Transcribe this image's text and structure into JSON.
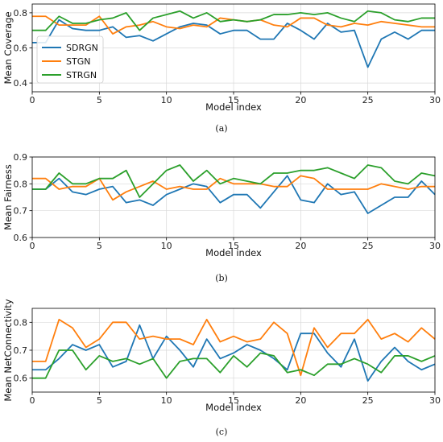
{
  "chart_data": [
    {
      "type": "line",
      "caption": "(a)",
      "xlabel": "Model index",
      "ylabel": "Mean Coverage",
      "xlim": [
        0,
        30
      ],
      "ylim": [
        0.35,
        0.85
      ],
      "yticks": [
        0.4,
        0.6,
        0.8
      ],
      "xticks": [
        0,
        5,
        10,
        15,
        20,
        25,
        30
      ],
      "grid": true,
      "legend": "left",
      "series": [
        {
          "name": "SDRGN",
          "color": "#1f77b4",
          "x": [
            0,
            1,
            2,
            3,
            4,
            5,
            6,
            7,
            8,
            9,
            10,
            11,
            12,
            13,
            14,
            15,
            16,
            17,
            18,
            19,
            20,
            21,
            22,
            23,
            24,
            25,
            26,
            27,
            28,
            29,
            30
          ],
          "values": [
            0.63,
            0.63,
            0.76,
            0.71,
            0.7,
            0.7,
            0.72,
            0.66,
            0.67,
            0.64,
            0.68,
            0.72,
            0.74,
            0.73,
            0.68,
            0.7,
            0.7,
            0.65,
            0.65,
            0.74,
            0.7,
            0.65,
            0.74,
            0.69,
            0.7,
            0.49,
            0.65,
            0.69,
            0.65,
            0.7,
            0.7
          ]
        },
        {
          "name": "STGN",
          "color": "#ff7f0e",
          "x": [
            0,
            1,
            2,
            3,
            4,
            5,
            6,
            7,
            8,
            9,
            10,
            11,
            12,
            13,
            14,
            15,
            16,
            17,
            18,
            19,
            20,
            21,
            22,
            23,
            24,
            25,
            26,
            27,
            28,
            29,
            30
          ],
          "values": [
            0.78,
            0.78,
            0.73,
            0.73,
            0.73,
            0.78,
            0.68,
            0.72,
            0.73,
            0.75,
            0.72,
            0.71,
            0.73,
            0.72,
            0.77,
            0.76,
            0.75,
            0.76,
            0.73,
            0.72,
            0.77,
            0.77,
            0.73,
            0.72,
            0.74,
            0.73,
            0.75,
            0.74,
            0.73,
            0.72,
            0.72
          ]
        },
        {
          "name": "STRGN",
          "color": "#2ca02c",
          "x": [
            0,
            1,
            2,
            3,
            4,
            5,
            6,
            7,
            8,
            9,
            10,
            11,
            12,
            13,
            14,
            15,
            16,
            17,
            18,
            19,
            20,
            21,
            22,
            23,
            24,
            25,
            26,
            27,
            28,
            29,
            30
          ],
          "values": [
            0.7,
            0.7,
            0.78,
            0.74,
            0.74,
            0.76,
            0.77,
            0.8,
            0.7,
            0.77,
            0.79,
            0.81,
            0.77,
            0.8,
            0.75,
            0.76,
            0.75,
            0.76,
            0.79,
            0.79,
            0.8,
            0.79,
            0.8,
            0.77,
            0.75,
            0.81,
            0.8,
            0.76,
            0.75,
            0.77,
            0.77
          ]
        }
      ]
    },
    {
      "type": "line",
      "caption": "(b)",
      "xlabel": "Model index",
      "ylabel": "Mean Fairness",
      "xlim": [
        0,
        30
      ],
      "ylim": [
        0.6,
        0.9
      ],
      "yticks": [
        0.6,
        0.7,
        0.8,
        0.9
      ],
      "xticks": [
        0,
        5,
        10,
        15,
        20,
        25,
        30
      ],
      "grid": true,
      "series": [
        {
          "name": "SDRGN",
          "color": "#1f77b4",
          "x": [
            0,
            1,
            2,
            3,
            4,
            5,
            6,
            7,
            8,
            9,
            10,
            11,
            12,
            13,
            14,
            15,
            16,
            17,
            18,
            19,
            20,
            21,
            22,
            23,
            24,
            25,
            26,
            27,
            28,
            29,
            30
          ],
          "values": [
            0.78,
            0.78,
            0.82,
            0.77,
            0.76,
            0.78,
            0.79,
            0.73,
            0.74,
            0.72,
            0.76,
            0.78,
            0.8,
            0.79,
            0.73,
            0.76,
            0.76,
            0.71,
            0.77,
            0.83,
            0.74,
            0.73,
            0.8,
            0.76,
            0.77,
            0.69,
            0.72,
            0.75,
            0.75,
            0.81,
            0.76
          ]
        },
        {
          "name": "STGN",
          "color": "#ff7f0e",
          "x": [
            0,
            1,
            2,
            3,
            4,
            5,
            6,
            7,
            8,
            9,
            10,
            11,
            12,
            13,
            14,
            15,
            16,
            17,
            18,
            19,
            20,
            21,
            22,
            23,
            24,
            25,
            26,
            27,
            28,
            29,
            30
          ],
          "values": [
            0.82,
            0.82,
            0.78,
            0.79,
            0.79,
            0.82,
            0.74,
            0.77,
            0.79,
            0.81,
            0.78,
            0.79,
            0.78,
            0.78,
            0.82,
            0.8,
            0.8,
            0.8,
            0.79,
            0.79,
            0.83,
            0.82,
            0.78,
            0.78,
            0.78,
            0.78,
            0.8,
            0.79,
            0.78,
            0.79,
            0.79
          ]
        },
        {
          "name": "STRGN",
          "color": "#2ca02c",
          "x": [
            0,
            1,
            2,
            3,
            4,
            5,
            6,
            7,
            8,
            9,
            10,
            11,
            12,
            13,
            14,
            15,
            16,
            17,
            18,
            19,
            20,
            21,
            22,
            23,
            24,
            25,
            26,
            27,
            28,
            29,
            30
          ],
          "values": [
            0.78,
            0.78,
            0.84,
            0.8,
            0.8,
            0.82,
            0.82,
            0.85,
            0.75,
            0.8,
            0.85,
            0.87,
            0.81,
            0.85,
            0.8,
            0.82,
            0.81,
            0.8,
            0.84,
            0.84,
            0.85,
            0.85,
            0.86,
            0.84,
            0.82,
            0.87,
            0.86,
            0.81,
            0.8,
            0.84,
            0.83
          ]
        }
      ]
    },
    {
      "type": "line",
      "caption": "(c)",
      "xlabel": "Model index",
      "ylabel": "Mean NetConnectivity",
      "xlim": [
        0,
        30
      ],
      "ylim": [
        0.55,
        0.85
      ],
      "yticks": [
        0.6,
        0.7,
        0.8
      ],
      "xticks": [
        0,
        5,
        10,
        15,
        20,
        25,
        30
      ],
      "grid": true,
      "series": [
        {
          "name": "SDRGN",
          "color": "#1f77b4",
          "x": [
            0,
            1,
            2,
            3,
            4,
            5,
            6,
            7,
            8,
            9,
            10,
            11,
            12,
            13,
            14,
            15,
            16,
            17,
            18,
            19,
            20,
            21,
            22,
            23,
            24,
            25,
            26,
            27,
            28,
            29,
            30
          ],
          "values": [
            0.63,
            0.63,
            0.67,
            0.72,
            0.7,
            0.72,
            0.64,
            0.66,
            0.79,
            0.67,
            0.75,
            0.7,
            0.64,
            0.74,
            0.67,
            0.69,
            0.72,
            0.7,
            0.67,
            0.63,
            0.76,
            0.76,
            0.69,
            0.64,
            0.74,
            0.59,
            0.66,
            0.71,
            0.66,
            0.63,
            0.65
          ]
        },
        {
          "name": "STGN",
          "color": "#ff7f0e",
          "x": [
            0,
            1,
            2,
            3,
            4,
            5,
            6,
            7,
            8,
            9,
            10,
            11,
            12,
            13,
            14,
            15,
            16,
            17,
            18,
            19,
            20,
            21,
            22,
            23,
            24,
            25,
            26,
            27,
            28,
            29,
            30
          ],
          "values": [
            0.66,
            0.66,
            0.81,
            0.78,
            0.71,
            0.74,
            0.8,
            0.8,
            0.74,
            0.75,
            0.74,
            0.74,
            0.72,
            0.81,
            0.73,
            0.75,
            0.73,
            0.74,
            0.8,
            0.76,
            0.61,
            0.78,
            0.71,
            0.76,
            0.76,
            0.81,
            0.74,
            0.76,
            0.73,
            0.78,
            0.74
          ]
        },
        {
          "name": "STRGN",
          "color": "#2ca02c",
          "x": [
            0,
            1,
            2,
            3,
            4,
            5,
            6,
            7,
            8,
            9,
            10,
            11,
            12,
            13,
            14,
            15,
            16,
            17,
            18,
            19,
            20,
            21,
            22,
            23,
            24,
            25,
            26,
            27,
            28,
            29,
            30
          ],
          "values": [
            0.6,
            0.6,
            0.7,
            0.7,
            0.63,
            0.68,
            0.66,
            0.67,
            0.65,
            0.67,
            0.6,
            0.66,
            0.67,
            0.67,
            0.62,
            0.68,
            0.64,
            0.69,
            0.68,
            0.62,
            0.63,
            0.61,
            0.65,
            0.65,
            0.67,
            0.65,
            0.62,
            0.68,
            0.68,
            0.66,
            0.68
          ]
        }
      ]
    }
  ]
}
